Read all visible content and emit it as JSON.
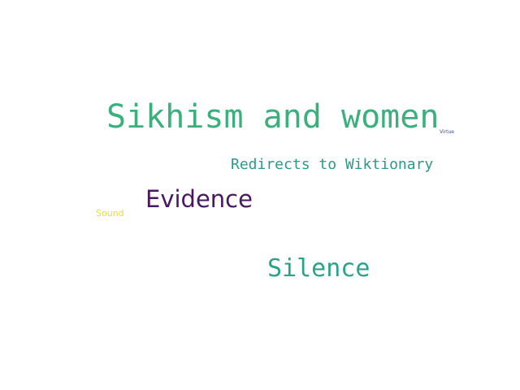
{
  "words": [
    {
      "text": "Sikhism and women",
      "color": "#3bb07d"
    },
    {
      "text": "Redirects to Wiktionary",
      "color": "#2a9a8a"
    },
    {
      "text": "Evidence",
      "color": "#4a1762"
    },
    {
      "text": "Silence",
      "color": "#29a38a"
    },
    {
      "text": "Sound",
      "color": "#e2dc3a"
    },
    {
      "text": "Virtue",
      "color": "#3e4a8a"
    }
  ]
}
